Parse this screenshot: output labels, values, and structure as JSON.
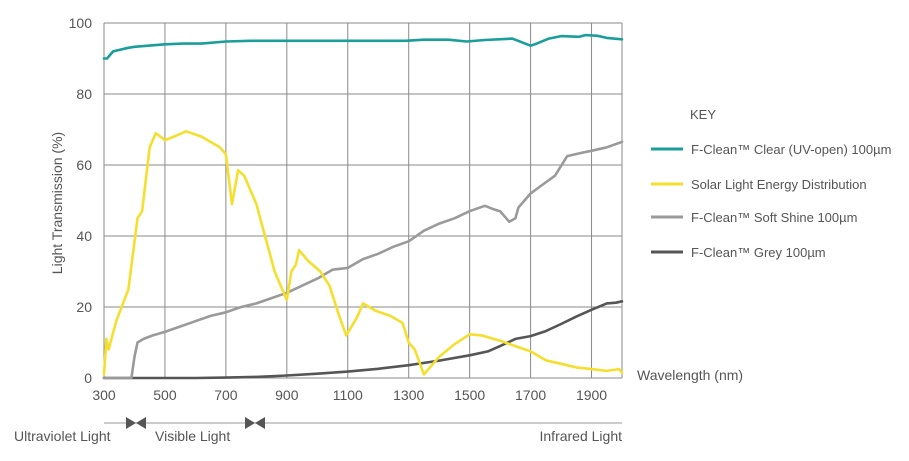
{
  "chart_data": {
    "type": "line",
    "title": "",
    "xlabel": "Wavelength (nm)",
    "ylabel": "Light Transmission (%)",
    "xlim": [
      300,
      2000
    ],
    "ylim": [
      0,
      100
    ],
    "x_ticks": [
      300,
      500,
      700,
      900,
      1100,
      1300,
      1500,
      1700,
      1900
    ],
    "y_ticks": [
      0,
      20,
      40,
      60,
      80,
      100
    ],
    "grid": true,
    "legend": {
      "title": "KEY",
      "placement": "right"
    },
    "series": [
      {
        "name": "F-Clean™ Clear (UV-open) 100µm",
        "color": "#1a9e9a",
        "points": [
          [
            300,
            90
          ],
          [
            310,
            90
          ],
          [
            330,
            92
          ],
          [
            380,
            93
          ],
          [
            400,
            93.3
          ],
          [
            430,
            93.5
          ],
          [
            500,
            94
          ],
          [
            560,
            94.2
          ],
          [
            620,
            94.2
          ],
          [
            700,
            94.8
          ],
          [
            780,
            95
          ],
          [
            900,
            95
          ],
          [
            1000,
            95
          ],
          [
            1100,
            95
          ],
          [
            1200,
            95
          ],
          [
            1290,
            95
          ],
          [
            1350,
            95.3
          ],
          [
            1400,
            95.3
          ],
          [
            1430,
            95.3
          ],
          [
            1490,
            94.8
          ],
          [
            1550,
            95.2
          ],
          [
            1640,
            95.6
          ],
          [
            1700,
            93.6
          ],
          [
            1720,
            94.2
          ],
          [
            1760,
            95.6
          ],
          [
            1800,
            96.3
          ],
          [
            1860,
            96.1
          ],
          [
            1880,
            96.6
          ],
          [
            1920,
            96.4
          ],
          [
            1950,
            95.8
          ],
          [
            2000,
            95.4
          ]
        ]
      },
      {
        "name": "Solar Light Energy Distribution",
        "color": "#f5df2e",
        "points": [
          [
            300,
            1
          ],
          [
            308,
            11
          ],
          [
            315,
            8
          ],
          [
            340,
            16
          ],
          [
            380,
            25
          ],
          [
            410,
            45
          ],
          [
            425,
            47
          ],
          [
            450,
            65
          ],
          [
            470,
            69
          ],
          [
            500,
            67
          ],
          [
            530,
            68
          ],
          [
            570,
            69.5
          ],
          [
            620,
            68
          ],
          [
            680,
            65
          ],
          [
            700,
            63
          ],
          [
            710,
            56
          ],
          [
            720,
            49
          ],
          [
            740,
            58.5
          ],
          [
            760,
            57
          ],
          [
            800,
            49
          ],
          [
            860,
            30
          ],
          [
            900,
            22
          ],
          [
            915,
            30
          ],
          [
            930,
            32
          ],
          [
            940,
            36
          ],
          [
            970,
            33
          ],
          [
            1010,
            30
          ],
          [
            1040,
            26
          ],
          [
            1070,
            18
          ],
          [
            1095,
            12
          ],
          [
            1130,
            17
          ],
          [
            1150,
            21
          ],
          [
            1190,
            19
          ],
          [
            1240,
            17.5
          ],
          [
            1280,
            15.5
          ],
          [
            1300,
            10
          ],
          [
            1320,
            8
          ],
          [
            1350,
            1
          ],
          [
            1370,
            3
          ],
          [
            1400,
            6
          ],
          [
            1450,
            9.5
          ],
          [
            1500,
            12.3
          ],
          [
            1540,
            12
          ],
          [
            1600,
            10.5
          ],
          [
            1650,
            9
          ],
          [
            1700,
            7.5
          ],
          [
            1750,
            5
          ],
          [
            1800,
            4
          ],
          [
            1850,
            3
          ],
          [
            1900,
            2.5
          ],
          [
            1950,
            2
          ],
          [
            1990,
            2.5
          ],
          [
            2000,
            1.5
          ]
        ]
      },
      {
        "name": "F-Clean™ Soft Shine 100µm",
        "color": "#9a9a9a",
        "points": [
          [
            300,
            0
          ],
          [
            390,
            0
          ],
          [
            400,
            6
          ],
          [
            410,
            10
          ],
          [
            430,
            11
          ],
          [
            460,
            12
          ],
          [
            500,
            13
          ],
          [
            550,
            14.5
          ],
          [
            600,
            16
          ],
          [
            650,
            17.5
          ],
          [
            700,
            18.5
          ],
          [
            750,
            20
          ],
          [
            800,
            21
          ],
          [
            850,
            22.5
          ],
          [
            900,
            24
          ],
          [
            950,
            26
          ],
          [
            1000,
            28
          ],
          [
            1050,
            30.5
          ],
          [
            1100,
            31
          ],
          [
            1150,
            33.5
          ],
          [
            1200,
            35
          ],
          [
            1250,
            37
          ],
          [
            1300,
            38.5
          ],
          [
            1350,
            41.5
          ],
          [
            1400,
            43.5
          ],
          [
            1450,
            45
          ],
          [
            1500,
            47
          ],
          [
            1550,
            48.5
          ],
          [
            1580,
            47.5
          ],
          [
            1600,
            47
          ],
          [
            1630,
            44
          ],
          [
            1650,
            45
          ],
          [
            1660,
            48
          ],
          [
            1680,
            50
          ],
          [
            1700,
            52
          ],
          [
            1740,
            54.5
          ],
          [
            1780,
            57
          ],
          [
            1820,
            62.5
          ],
          [
            1870,
            63.5
          ],
          [
            1900,
            64
          ],
          [
            1950,
            65
          ],
          [
            2000,
            66.5
          ]
        ]
      },
      {
        "name": "F-Clean™ Grey 100µm",
        "color": "#555555",
        "points": [
          [
            300,
            0
          ],
          [
            400,
            0
          ],
          [
            500,
            0
          ],
          [
            600,
            0
          ],
          [
            700,
            0.1
          ],
          [
            800,
            0.3
          ],
          [
            900,
            0.7
          ],
          [
            1000,
            1.2
          ],
          [
            1100,
            1.8
          ],
          [
            1200,
            2.6
          ],
          [
            1300,
            3.6
          ],
          [
            1400,
            4.9
          ],
          [
            1500,
            6.4
          ],
          [
            1560,
            7.5
          ],
          [
            1600,
            9
          ],
          [
            1650,
            11
          ],
          [
            1700,
            11.8
          ],
          [
            1750,
            13.2
          ],
          [
            1800,
            15.2
          ],
          [
            1850,
            17.3
          ],
          [
            1900,
            19.2
          ],
          [
            1950,
            21
          ],
          [
            1980,
            21.2
          ],
          [
            2000,
            21.6
          ]
        ]
      }
    ],
    "bands": [
      {
        "label": "Ultraviolet Light",
        "range": [
          300,
          400
        ]
      },
      {
        "label": "Visible Light",
        "range": [
          400,
          780
        ]
      },
      {
        "label": "Infrared Light",
        "range": [
          780,
          2000
        ]
      }
    ]
  }
}
